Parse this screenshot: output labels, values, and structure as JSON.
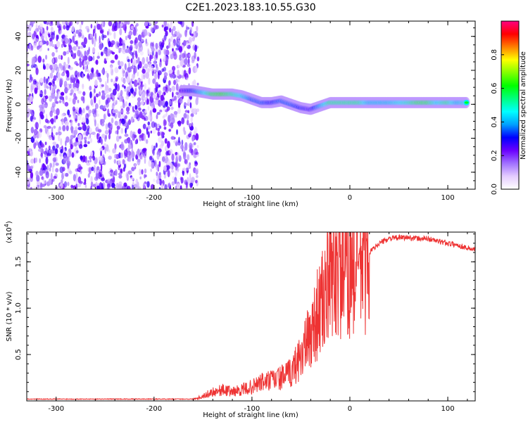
{
  "title": "C2E1.2023.183.10.55.G30",
  "chart_data": [
    {
      "type": "heatmap",
      "xlabel": "Height of straight line (km)",
      "ylabel": "Frequency (Hz)",
      "xlim": [
        -330,
        128
      ],
      "ylim": [
        -50,
        49
      ],
      "xticks": [
        -300,
        -200,
        -100,
        0,
        100
      ],
      "yticks": [
        -40,
        -20,
        0,
        20,
        40
      ],
      "colorbar": {
        "label": "Normalized spectral amplitude",
        "range": [
          0,
          1
        ],
        "ticks": [
          0.0,
          0.2,
          0.4,
          0.6,
          0.8
        ],
        "colors": [
          "#ffffff",
          "#e4ccff",
          "#a070ff",
          "#6a00ff",
          "#0000ff",
          "#00a0ff",
          "#00ffff",
          "#00ff80",
          "#00ff00",
          "#80ff00",
          "#ffff00",
          "#ff8000",
          "#ff0000",
          "#ff0080"
        ]
      },
      "ridge": [
        {
          "x": -172,
          "f": 8,
          "amp": 0.3
        },
        {
          "x": -160,
          "f": 8,
          "amp": 0.4
        },
        {
          "x": -150,
          "f": 7,
          "amp": 0.55
        },
        {
          "x": -140,
          "f": 6,
          "amp": 0.75
        },
        {
          "x": -130,
          "f": 6,
          "amp": 0.8
        },
        {
          "x": -120,
          "f": 6,
          "amp": 0.7
        },
        {
          "x": -110,
          "f": 5,
          "amp": 0.6
        },
        {
          "x": -100,
          "f": 3,
          "amp": 0.45
        },
        {
          "x": -90,
          "f": 1,
          "amp": 0.45
        },
        {
          "x": -80,
          "f": 1,
          "amp": 0.4
        },
        {
          "x": -70,
          "f": 2,
          "amp": 0.45
        },
        {
          "x": -60,
          "f": 0,
          "amp": 0.45
        },
        {
          "x": -50,
          "f": -2,
          "amp": 0.4
        },
        {
          "x": -40,
          "f": -3,
          "amp": 0.35
        },
        {
          "x": -30,
          "f": -1,
          "amp": 0.5
        },
        {
          "x": -20,
          "f": 1,
          "amp": 0.7
        },
        {
          "x": -10,
          "f": 1,
          "amp": 0.7
        },
        {
          "x": 0,
          "f": 1,
          "amp": 0.7
        },
        {
          "x": 10,
          "f": 1,
          "amp": 0.7
        },
        {
          "x": 20,
          "f": 1,
          "amp": 0.55
        },
        {
          "x": 30,
          "f": 1,
          "amp": 0.55
        },
        {
          "x": 40,
          "f": 1,
          "amp": 0.55
        },
        {
          "x": 50,
          "f": 1,
          "amp": 0.6
        },
        {
          "x": 60,
          "f": 1,
          "amp": 0.65
        },
        {
          "x": 70,
          "f": 1,
          "amp": 0.75
        },
        {
          "x": 80,
          "f": 1,
          "amp": 0.75
        },
        {
          "x": 90,
          "f": 1,
          "amp": 0.6
        },
        {
          "x": 100,
          "f": 1,
          "amp": 0.7
        },
        {
          "x": 110,
          "f": 1,
          "amp": 0.55
        },
        {
          "x": 120,
          "f": 1,
          "amp": 0.6
        }
      ]
    },
    {
      "type": "line",
      "xlabel": "Height of straight line (km)",
      "ylabel": "SNR (10 * v/v)",
      "yscale_label": "(x10",
      "yscale_exp": "4",
      "yscale_suffix": ")",
      "xlim": [
        -330,
        128
      ],
      "ylim": [
        0,
        1.82
      ],
      "xticks": [
        -300,
        -200,
        -100,
        0,
        100
      ],
      "yticks": [
        0.5,
        1.0,
        1.5
      ],
      "color": "#ee3333",
      "series": [
        {
          "x": [
            -330,
            -250,
            -160,
            -150,
            -140,
            -130,
            -120,
            -110,
            -100,
            -90,
            -80,
            -70,
            -60,
            -50,
            -45,
            -40,
            -35,
            -30,
            -25,
            -20,
            -15,
            -10,
            -5,
            0,
            5,
            10,
            15,
            20,
            30,
            40,
            50,
            60,
            70,
            80,
            90,
            100,
            110,
            120,
            128
          ],
          "y": [
            0.02,
            0.02,
            0.02,
            0.05,
            0.1,
            0.12,
            0.1,
            0.12,
            0.15,
            0.2,
            0.22,
            0.25,
            0.3,
            0.5,
            0.6,
            0.7,
            0.9,
            1.0,
            1.15,
            1.3,
            1.4,
            1.4,
            1.35,
            1.4,
            1.45,
            1.5,
            1.55,
            1.6,
            1.7,
            1.75,
            1.76,
            1.76,
            1.75,
            1.75,
            1.72,
            1.7,
            1.68,
            1.65,
            1.63
          ]
        }
      ]
    }
  ]
}
